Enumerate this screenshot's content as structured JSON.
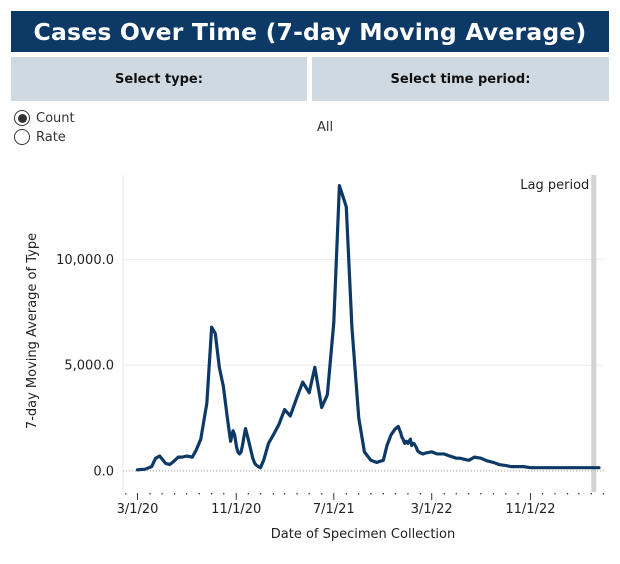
{
  "header": {
    "title": "Cases Over Time (7-day Moving Average)"
  },
  "filters": {
    "type_label": "Select type:",
    "period_label": "Select time period:",
    "type_options": [
      {
        "label": "Count",
        "selected": true
      },
      {
        "label": "Rate",
        "selected": false
      }
    ],
    "period_value": "All"
  },
  "colors": {
    "header_bg": "#0c3966",
    "filter_bg": "#cfd9e1",
    "line": "#0c3966",
    "lag_band": "#d3d3d3"
  },
  "chart_data": {
    "type": "line",
    "title": "",
    "xlabel": "Date of Specimen Collection",
    "ylabel": "7-day Moving Average of Type",
    "x_tick_labels": [
      "3/1/20",
      "11/1/20",
      "7/1/21",
      "3/1/22",
      "11/1/22"
    ],
    "y_tick_labels": [
      "0.0",
      "5,000.0",
      "10,000.0"
    ],
    "y_ticks": [
      0,
      5000,
      10000
    ],
    "ylim": [
      -1000,
      14000
    ],
    "xlim": [
      "2020-01-25",
      "2023-05-05"
    ],
    "grid": true,
    "legend": "none",
    "annotation": {
      "text": "Lag period",
      "start": "2023-04-01",
      "end": "2023-04-08"
    },
    "series": [
      {
        "x": [
          "2020-03-01",
          "2020-03-20",
          "2020-04-05",
          "2020-04-15",
          "2020-04-25",
          "2020-05-10",
          "2020-05-20",
          "2020-05-30",
          "2020-06-10",
          "2020-06-20",
          "2020-07-01",
          "2020-07-15",
          "2020-07-25",
          "2020-08-05",
          "2020-08-20",
          "2020-09-01",
          "2020-09-10",
          "2020-09-20",
          "2020-09-30",
          "2020-10-10",
          "2020-10-18",
          "2020-10-24",
          "2020-10-28",
          "2020-11-02",
          "2020-11-05",
          "2020-11-09",
          "2020-11-13",
          "2020-11-17",
          "2020-11-20",
          "2020-11-24",
          "2020-11-28",
          "2020-12-02",
          "2020-12-07",
          "2020-12-12",
          "2020-12-17",
          "2020-12-22",
          "2020-12-26",
          "2020-12-31",
          "2021-01-08",
          "2021-01-20",
          "2021-02-01",
          "2021-02-15",
          "2021-03-01",
          "2021-03-15",
          "2021-04-01",
          "2021-04-15",
          "2021-05-01",
          "2021-05-15",
          "2021-06-01",
          "2021-06-15",
          "2021-07-01",
          "2021-07-15",
          "2021-08-01",
          "2021-08-15",
          "2021-09-01",
          "2021-09-15",
          "2021-10-01",
          "2021-10-15",
          "2021-11-01",
          "2021-11-10",
          "2021-11-20",
          "2021-12-01",
          "2021-12-08",
          "2021-12-14",
          "2021-12-17",
          "2021-12-20",
          "2021-12-24",
          "2021-12-28",
          "2022-01-01",
          "2022-01-04",
          "2022-01-07",
          "2022-01-10",
          "2022-01-13",
          "2022-01-16",
          "2022-01-19",
          "2022-01-22",
          "2022-01-25",
          "2022-01-28",
          "2022-02-01",
          "2022-02-07",
          "2022-02-15",
          "2022-03-01",
          "2022-03-15",
          "2022-04-01",
          "2022-04-15",
          "2022-05-01",
          "2022-05-10",
          "2022-05-20",
          "2022-06-01",
          "2022-06-15",
          "2022-07-01",
          "2022-07-15",
          "2022-08-01",
          "2022-08-15",
          "2022-09-01",
          "2022-09-15",
          "2022-10-01",
          "2022-10-15",
          "2022-11-01",
          "2022-11-15",
          "2022-12-01",
          "2022-12-15",
          "2023-01-01",
          "2023-01-15",
          "2023-02-01",
          "2023-02-15",
          "2023-03-01",
          "2023-03-15",
          "2023-04-01",
          "2023-04-10",
          "2023-04-20"
        ],
        "y": [
          50,
          80,
          200,
          600,
          700,
          350,
          300,
          450,
          650,
          650,
          700,
          650,
          1000,
          1500,
          3200,
          6800,
          6500,
          4900,
          4000,
          2500,
          1400,
          1900,
          1700,
          1100,
          900,
          800,
          900,
          1250,
          1600,
          2000,
          1700,
          1400,
          1000,
          600,
          350,
          250,
          200,
          150,
          500,
          1300,
          1700,
          2200,
          2900,
          2600,
          3500,
          4200,
          3700,
          4900,
          3000,
          3600,
          7000,
          13500,
          12500,
          6800,
          2500,
          900,
          500,
          400,
          500,
          1200,
          1700,
          2000,
          2100,
          1800,
          1600,
          1500,
          1300,
          1400,
          1300,
          1400,
          1500,
          1200,
          1300,
          1300,
          1200,
          1100,
          950,
          900,
          850,
          800,
          850,
          900,
          800,
          800,
          700,
          600,
          600,
          550,
          500,
          650,
          600,
          480,
          400,
          300,
          250,
          200,
          200,
          200,
          150,
          150,
          150,
          150,
          150,
          150,
          150,
          150,
          150,
          150,
          150,
          150,
          150
        ]
      }
    ]
  }
}
